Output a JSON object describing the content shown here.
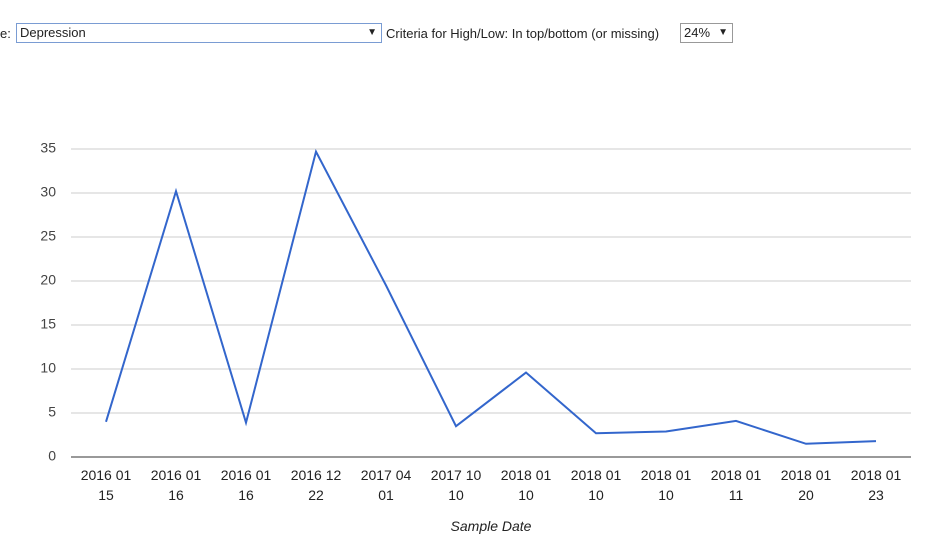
{
  "controls": {
    "measure_label": "e:",
    "measure_value": "Depression",
    "criteria_label": "Criteria for High/Low: In top/bottom (or missing)",
    "criteria_value": "24%"
  },
  "chart_data": {
    "type": "line",
    "x_label": "Sample Date",
    "categories": [
      "2016 01 15",
      "2016 01 16",
      "2016 01 16",
      "2016 12 22",
      "2017 04 01",
      "2017 10 10",
      "2018 01 10",
      "2018 01 10",
      "2018 01 10",
      "2018 01 11",
      "2018 01 20",
      "2018 01 23"
    ],
    "series": [
      {
        "color": "#3366cc",
        "values": [
          4,
          30.2,
          3.9,
          34.7,
          19.5,
          3.5,
          9.6,
          2.7,
          2.9,
          4.1,
          1.5,
          1.8
        ]
      }
    ],
    "ylim": [
      0,
      35
    ],
    "yticks": [
      0,
      5,
      10,
      15,
      20,
      25,
      30,
      35
    ],
    "grid": true
  }
}
